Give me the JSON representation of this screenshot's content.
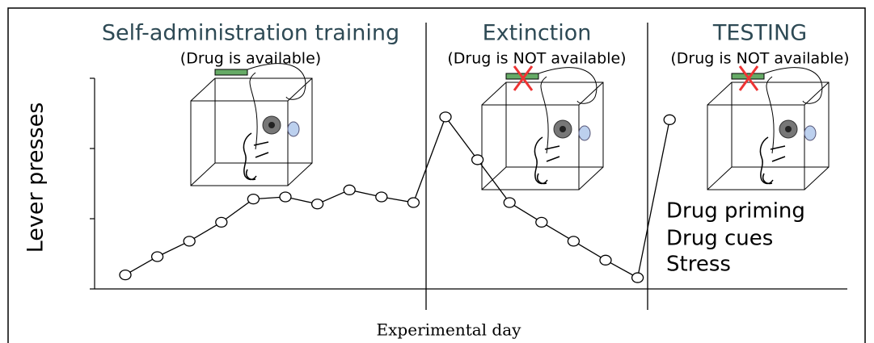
{
  "chart_data": {
    "type": "line",
    "x_label": "Experimental day",
    "y_label": "Lever presses",
    "categories": [
      null,
      null,
      null,
      null,
      null,
      null,
      null,
      null,
      null,
      null,
      null,
      null,
      null,
      null,
      null,
      null,
      null,
      null
    ],
    "values": [
      0.2,
      0.46,
      0.68,
      0.95,
      1.28,
      1.31,
      1.21,
      1.41,
      1.31,
      1.23,
      2.45,
      1.84,
      1.23,
      0.95,
      0.68,
      0.41,
      0.16,
      2.41
    ],
    "color": "#000000",
    "ylim": [
      0,
      3
    ],
    "yticks": [
      0,
      1,
      2,
      3
    ],
    "phases": [
      {
        "title": "Self-administration training",
        "subtitle": "(Drug is available)"
      },
      {
        "title": "Extinction",
        "subtitle": "(Drug is NOT available)"
      },
      {
        "title": "TESTING",
        "subtitle": "(Drug is NOT available)"
      }
    ],
    "annotations": [
      "Drug priming",
      "Drug cues",
      "Stress"
    ]
  }
}
